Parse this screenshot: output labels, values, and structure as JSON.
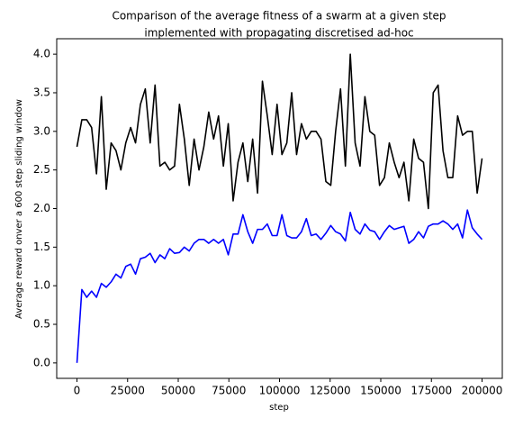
{
  "chart_data": {
    "type": "line",
    "title": "Comparison of the average fitness of a swarm at a given step",
    "subtitle": "implemented with propagating discretised ad-hoc",
    "x_label": "step",
    "y_label": "Average reward onver a 600 step sliding window",
    "x": [
      0,
      2410,
      4819,
      7229,
      9639,
      12048,
      14458,
      16867,
      19277,
      21687,
      24096,
      26506,
      28916,
      31325,
      33735,
      36145,
      38554,
      40964,
      43373,
      45783,
      48193,
      50602,
      53012,
      55422,
      57831,
      60241,
      62651,
      65060,
      67470,
      69880,
      72289,
      74699,
      77108,
      79518,
      81928,
      84337,
      86747,
      89157,
      91566,
      93976,
      96386,
      98795,
      101205,
      103614,
      106024,
      108434,
      110843,
      113253,
      115663,
      118072,
      120482,
      122892,
      125301,
      127711,
      130120,
      132530,
      134940,
      137349,
      139759,
      142169,
      144578,
      146988,
      149398,
      151807,
      154217,
      156627,
      159036,
      161446,
      163855,
      166265,
      168675,
      171084,
      173494,
      175904,
      178313,
      180723,
      183133,
      185542,
      187952,
      190361,
      192771,
      195181,
      197590,
      200000
    ],
    "series": [
      {
        "color": "#000000",
        "values": [
          2.8,
          3.15,
          3.15,
          3.05,
          2.45,
          3.45,
          2.25,
          2.85,
          2.75,
          2.5,
          2.85,
          3.05,
          2.85,
          3.35,
          3.55,
          2.85,
          3.6,
          2.55,
          2.6,
          2.5,
          2.55,
          3.35,
          2.9,
          2.3,
          2.9,
          2.5,
          2.8,
          3.25,
          2.9,
          3.2,
          2.55,
          3.1,
          2.1,
          2.6,
          2.85,
          2.35,
          2.9,
          2.2,
          3.65,
          3.2,
          2.7,
          3.35,
          2.7,
          2.85,
          3.5,
          2.7,
          3.1,
          2.9,
          3.0,
          3.0,
          2.9,
          2.35,
          2.3,
          3.0,
          3.55,
          2.55,
          4.0,
          2.85,
          2.55,
          3.45,
          3.0,
          2.95,
          2.3,
          2.4,
          2.85,
          2.6,
          2.4,
          2.6,
          2.1,
          2.9,
          2.65,
          2.6,
          2.0,
          3.5,
          3.6,
          2.75,
          2.4,
          2.4,
          3.2,
          2.95,
          3.0,
          3.0,
          2.2,
          2.65
        ]
      },
      {
        "color": "#0000ff",
        "values": [
          0.0,
          0.95,
          0.85,
          0.93,
          0.85,
          1.03,
          0.98,
          1.05,
          1.15,
          1.1,
          1.25,
          1.28,
          1.15,
          1.35,
          1.37,
          1.42,
          1.3,
          1.4,
          1.35,
          1.48,
          1.42,
          1.43,
          1.5,
          1.45,
          1.55,
          1.6,
          1.6,
          1.55,
          1.6,
          1.55,
          1.6,
          1.4,
          1.67,
          1.67,
          1.92,
          1.7,
          1.55,
          1.73,
          1.73,
          1.8,
          1.65,
          1.65,
          1.92,
          1.65,
          1.62,
          1.62,
          1.7,
          1.87,
          1.65,
          1.67,
          1.6,
          1.68,
          1.78,
          1.7,
          1.67,
          1.58,
          1.95,
          1.73,
          1.67,
          1.8,
          1.72,
          1.7,
          1.6,
          1.7,
          1.78,
          1.73,
          1.75,
          1.77,
          1.55,
          1.6,
          1.7,
          1.62,
          1.77,
          1.8,
          1.8,
          1.84,
          1.8,
          1.73,
          1.8,
          1.62,
          1.98,
          1.75,
          1.67,
          1.6
        ]
      }
    ],
    "xlim": [
      -10000,
      210000
    ],
    "ylim": [
      -0.2,
      4.2
    ],
    "xticks": [
      0,
      25000,
      50000,
      75000,
      100000,
      125000,
      150000,
      175000,
      200000
    ],
    "yticks": [
      {
        "value": 0,
        "label": "0.0"
      },
      {
        "value": 0.5,
        "label": "0.5"
      },
      {
        "value": 1,
        "label": "1.0"
      },
      {
        "value": 1.5,
        "label": "1.5"
      },
      {
        "value": 2,
        "label": "2.0"
      },
      {
        "value": 2.5,
        "label": "2.5"
      },
      {
        "value": 3,
        "label": "3.0"
      },
      {
        "value": 3.5,
        "label": "3.5"
      },
      {
        "value": 4,
        "label": "4.0"
      }
    ],
    "grid": false
  }
}
